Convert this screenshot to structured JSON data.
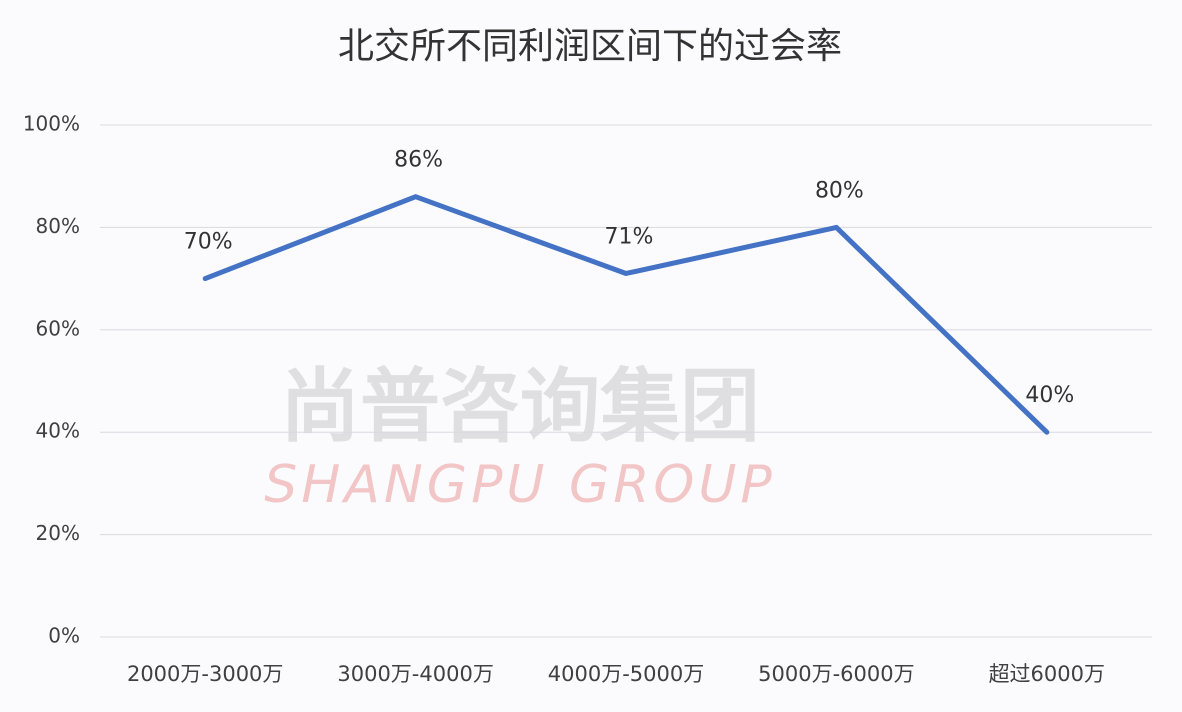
{
  "chart_data": {
    "type": "line",
    "title": "北交所不同利润区间下的过会率",
    "watermark": [
      "尚普咨询集团",
      "SHANGPU GROUP"
    ],
    "categories": [
      "2000万-3000万",
      "3000万-4000万",
      "4000万-5000万",
      "5000万-6000万",
      "超过6000万"
    ],
    "values": [
      70,
      86,
      71,
      80,
      40
    ],
    "value_labels": [
      "70%",
      "86%",
      "71%",
      "80%",
      "40%"
    ],
    "color": "#4472c4",
    "ylim": [
      0,
      100
    ],
    "yticks": [
      {
        "value": 0,
        "label": "0%"
      },
      {
        "value": 20,
        "label": "20%"
      },
      {
        "value": 40,
        "label": "40%"
      },
      {
        "value": 60,
        "label": "60%"
      },
      {
        "value": 80,
        "label": "80%"
      },
      {
        "value": 100,
        "label": "100%"
      }
    ],
    "grid": true
  }
}
